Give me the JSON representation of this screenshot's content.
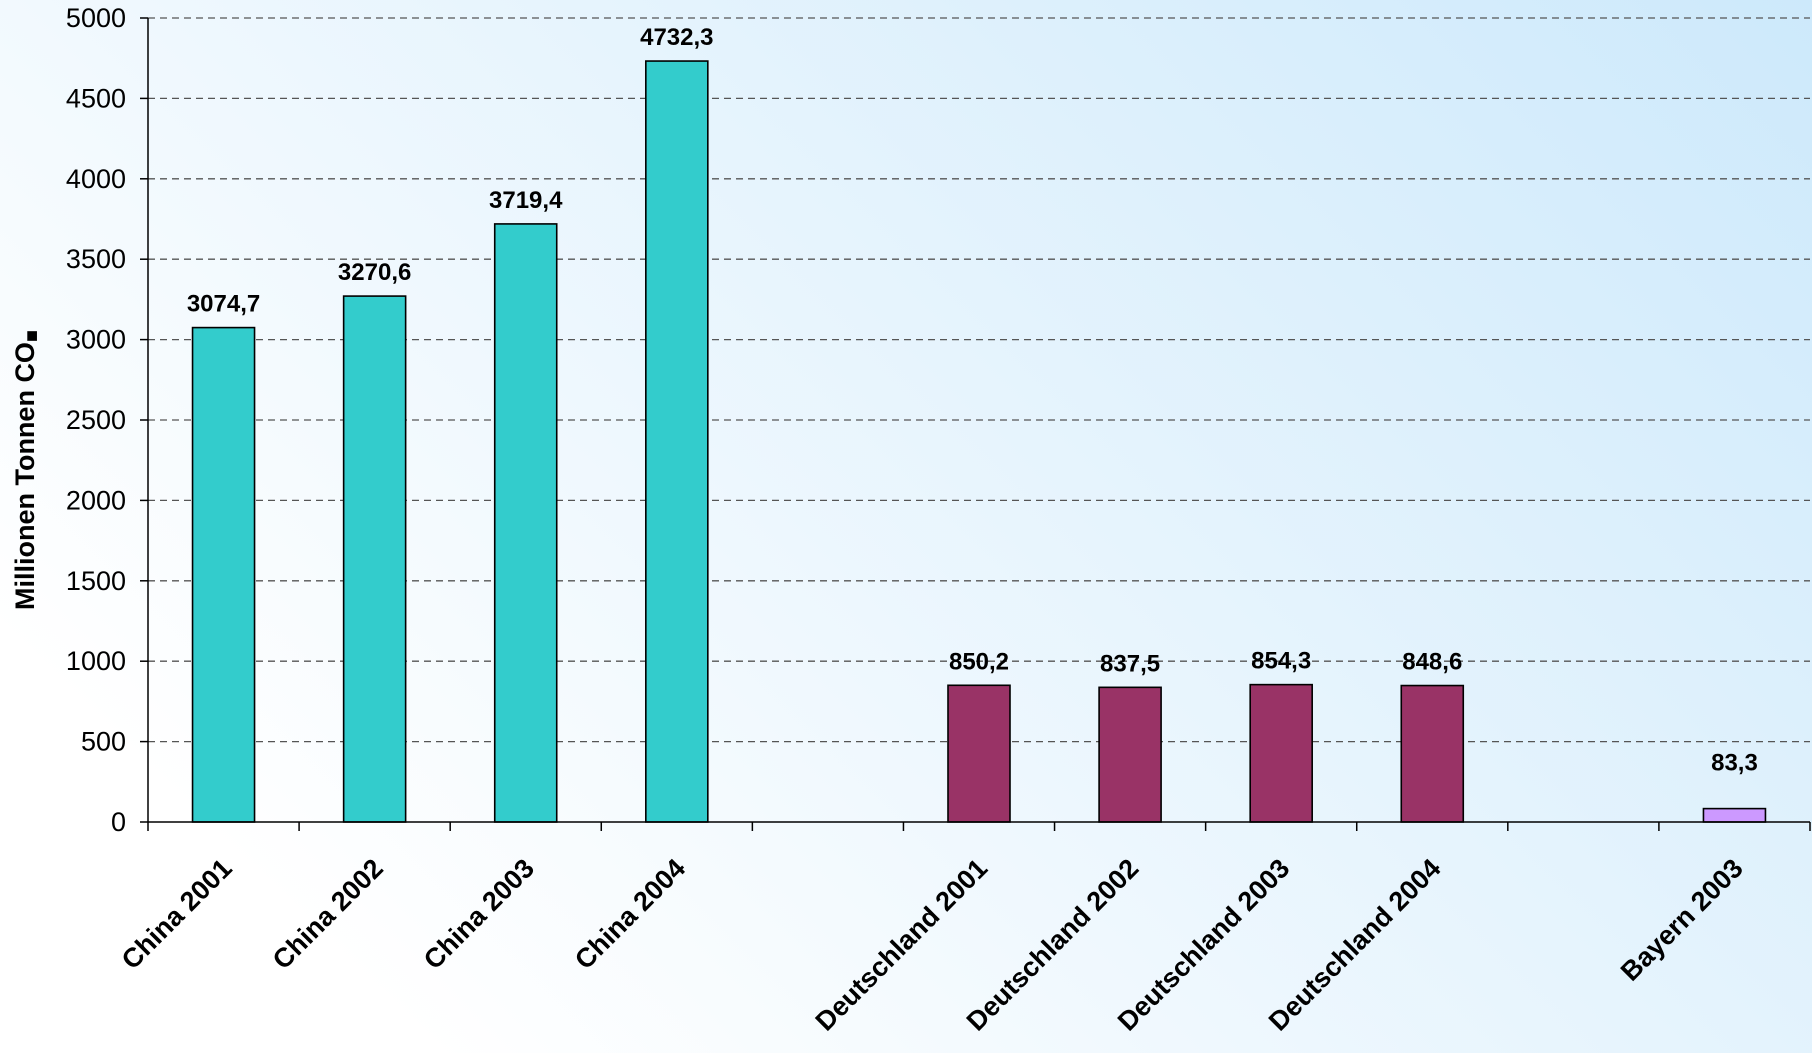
{
  "chart_data": {
    "type": "bar",
    "ylabel": "Millionen Tonnen CO",
    "ylabel_subscript_glyph": "■",
    "ylim": [
      0,
      5000
    ],
    "yticks": [
      0,
      500,
      1000,
      1500,
      2000,
      2500,
      3000,
      3500,
      4000,
      4500,
      5000
    ],
    "grid": true,
    "categories": [
      "China 2001",
      "China 2002",
      "China 2003",
      "China 2004",
      "",
      "Deutschland 2001",
      "Deutschland 2002",
      "Deutschland 2003",
      "Deutschland 2004",
      "",
      "Bayern 2003"
    ],
    "values": [
      3074.7,
      3270.6,
      3719.4,
      4732.3,
      null,
      850.2,
      837.5,
      854.3,
      848.6,
      null,
      83.3
    ],
    "value_labels": [
      "3074,7",
      "3270,6",
      "3719,4",
      "4732,3",
      "",
      "850,2",
      "837,5",
      "854,3",
      "848,6",
      "",
      "83,3"
    ],
    "bar_colors": [
      "#33cccc",
      "#33cccc",
      "#33cccc",
      "#33cccc",
      "",
      "#993366",
      "#993366",
      "#993366",
      "#993366",
      "",
      "#cc99ff"
    ],
    "background_gradient": [
      "#ffffff",
      "#cde9fb"
    ]
  }
}
